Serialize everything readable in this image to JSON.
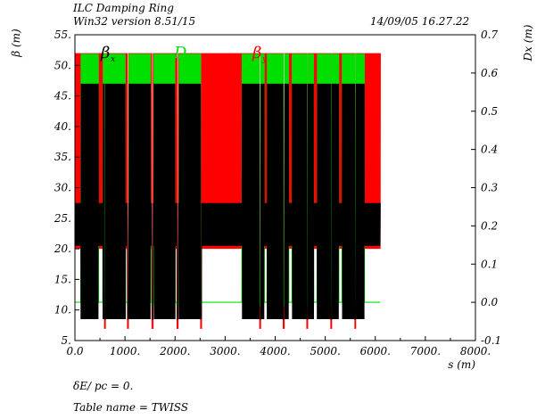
{
  "header": {
    "line1": "ILC Damping Ring",
    "line2": "Win32 version 8.51/15",
    "date": "14/09/05  16.27.22"
  },
  "footer": {
    "line1": "δE/ pc  =  0.",
    "line2": "Table name = TWISS"
  },
  "chart_data": {
    "type": "line",
    "xlabel": "s (m)",
    "ylabel": "β (m)",
    "y2label": "Dx (m)",
    "xlim": [
      0,
      8000
    ],
    "ylim": [
      5,
      55
    ],
    "y2lim": [
      -0.1,
      0.7
    ],
    "xticks": [
      0,
      1000,
      2000,
      3000,
      4000,
      5000,
      6000,
      7000,
      8000
    ],
    "xtick_labels": [
      "0.0",
      "1000.",
      "2000.",
      "3000.",
      "4000.",
      "5000.",
      "6000.",
      "7000.",
      "8000."
    ],
    "yticks": [
      5,
      10,
      15,
      20,
      25,
      30,
      35,
      40,
      45,
      50,
      55
    ],
    "ytick_labels": [
      "5.",
      "10.",
      "15.",
      "20.",
      "25.",
      "30.",
      "35.",
      "40.",
      "45.",
      "50.",
      "55."
    ],
    "y2ticks": [
      -0.1,
      0.0,
      0.1,
      0.2,
      0.3,
      0.4,
      0.5,
      0.6,
      0.7
    ],
    "y2tick_labels": [
      "-0.1",
      "0.0",
      "0.1",
      "0.2",
      "0.3",
      "0.4",
      "0.5",
      "0.6",
      "0.7"
    ],
    "ring_length": 6100,
    "arcs": [
      [
        120,
        470
      ],
      [
        560,
        1010
      ],
      [
        1080,
        1510
      ],
      [
        1580,
        2000
      ],
      [
        2080,
        2520
      ],
      [
        3340,
        3780
      ],
      [
        3840,
        4270
      ],
      [
        4340,
        4770
      ],
      [
        4840,
        5270
      ],
      [
        5340,
        5780
      ]
    ],
    "straights": [
      [
        0,
        120
      ],
      [
        2940,
        3340
      ],
      [
        5900,
        6100
      ]
    ],
    "dips": [
      600,
      1060,
      1550,
      2050,
      2520,
      3700,
      4170,
      4640,
      5120,
      5600
    ],
    "series": [
      {
        "name": "βx",
        "axis": "left",
        "color": "#000000",
        "arc_range": [
          8.5,
          47
        ],
        "straight_range": [
          20.5,
          27.5
        ],
        "dip_value": 8.5
      },
      {
        "name": "βy",
        "axis": "left",
        "color": "#ff0000",
        "arc_range": [
          21,
          52
        ],
        "straight_range": [
          20,
          52
        ],
        "dip_value": 7
      },
      {
        "name": "Dx",
        "axis": "right",
        "color": "#00e000",
        "arc_range": [
          0.11,
          0.65
        ],
        "outside_value": 0.0,
        "dip_value": -0.01
      }
    ],
    "legend": {
      "bx": {
        "text": "β",
        "sub": "x",
        "color": "#000000"
      },
      "dx": {
        "text": "D",
        "sub": "x",
        "color": "#00e000"
      },
      "by": {
        "text": "β",
        "sub": "y",
        "color": "#ff0000"
      }
    },
    "grid": false
  }
}
